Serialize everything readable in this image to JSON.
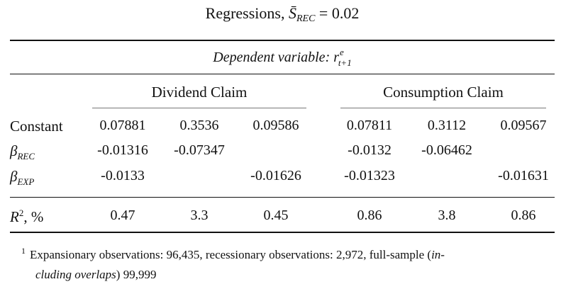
{
  "title": {
    "prefix": "Regressions, ",
    "symbol": "S̄",
    "subscript": "REC",
    "suffix": " = 0.02"
  },
  "dependent": {
    "label": "Dependent variable: ",
    "var": "r",
    "sup": "e",
    "sub": "t+1"
  },
  "groups": [
    "Dividend Claim",
    "Consumption Claim"
  ],
  "rows": [
    {
      "label": "Constant",
      "cells": [
        "0.07881",
        "0.3536",
        "0.09586",
        "0.07811",
        "0.3112",
        "0.09567"
      ]
    },
    {
      "label_symbol": "β",
      "label_sub": "REC",
      "cells": [
        "-0.01316",
        "-0.07347",
        "",
        "-0.0132",
        "-0.06462",
        ""
      ]
    },
    {
      "label_symbol": "β",
      "label_sub": "EXP",
      "cells": [
        "-0.0133",
        "",
        "-0.01626",
        "-0.01323",
        "",
        "-0.01631"
      ]
    },
    {
      "label_symbol": "R",
      "label_sup": "2",
      "label_suffix": ", %",
      "cells": [
        "0.47",
        "3.3",
        "0.45",
        "0.86",
        "3.8",
        "0.86"
      ]
    }
  ],
  "footnote": {
    "mark": "1",
    "text1": "Expansionary observations: 96,435, recessionary observations: 2,972, full-sample (",
    "italic1": "in-",
    "italic2": "cluding overlaps",
    "text2": ") 99,999"
  }
}
